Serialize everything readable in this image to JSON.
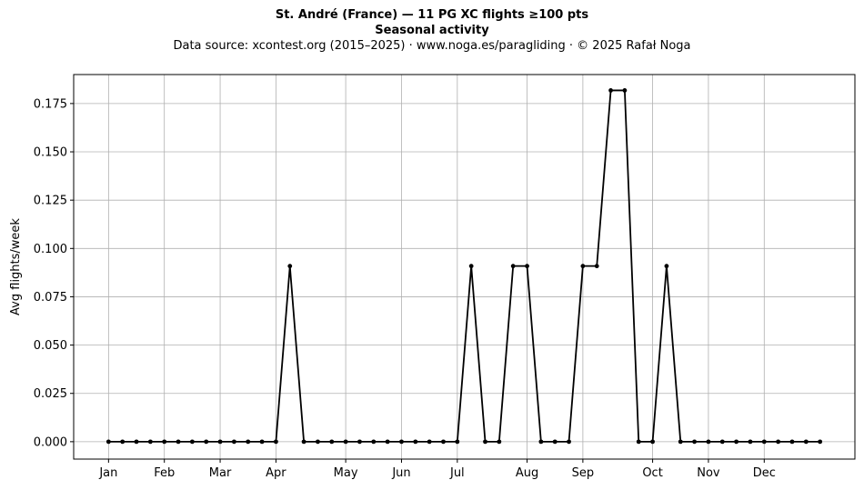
{
  "chart_data": {
    "type": "line",
    "title": "St. André (France)  —  11 PG XC flights ≥100 pts",
    "subtitle": "Seasonal activity",
    "source_line": "Data source: xcontest.org (2015–2025)  ·  www.noga.es/paragliding  ·  © 2025 Rafał Noga",
    "xlabel": "",
    "ylabel": "Avg flights/week",
    "ylim": [
      -0.009,
      0.19
    ],
    "xlim": [
      -2.5,
      53.5
    ],
    "grid": true,
    "x_tick_labels": [
      {
        "label": "Jan",
        "x": 0
      },
      {
        "label": "Feb",
        "x": 4
      },
      {
        "label": "Mar",
        "x": 8
      },
      {
        "label": "Apr",
        "x": 12
      },
      {
        "label": "May",
        "x": 17
      },
      {
        "label": "Jun",
        "x": 21
      },
      {
        "label": "Jul",
        "x": 25
      },
      {
        "label": "Aug",
        "x": 30
      },
      {
        "label": "Sep",
        "x": 34
      },
      {
        "label": "Oct",
        "x": 39
      },
      {
        "label": "Nov",
        "x": 43
      },
      {
        "label": "Dec",
        "x": 47
      }
    ],
    "y_ticks": [
      0.0,
      0.025,
      0.05,
      0.075,
      0.1,
      0.125,
      0.15,
      0.175
    ],
    "y_tick_labels": [
      "0.000",
      "0.025",
      "0.050",
      "0.075",
      "0.100",
      "0.125",
      "0.150",
      "0.175"
    ],
    "series": [
      {
        "color": "#000000",
        "x": [
          0,
          1,
          2,
          3,
          4,
          5,
          6,
          7,
          8,
          9,
          10,
          11,
          12,
          13,
          14,
          15,
          16,
          17,
          18,
          19,
          20,
          21,
          22,
          23,
          24,
          25,
          26,
          27,
          28,
          29,
          30,
          31,
          32,
          33,
          34,
          35,
          36,
          37,
          38,
          39,
          40,
          41,
          42,
          43,
          44,
          45,
          46,
          47,
          48,
          49,
          50,
          51
        ],
        "values": [
          0,
          0,
          0,
          0,
          0,
          0,
          0,
          0,
          0,
          0,
          0,
          0,
          0,
          0.0909,
          0,
          0,
          0,
          0,
          0,
          0,
          0,
          0,
          0,
          0,
          0,
          0,
          0.0909,
          0,
          0,
          0.0909,
          0.0909,
          0,
          0,
          0,
          0.0909,
          0.0909,
          0.1818,
          0.1818,
          0,
          0,
          0.0909,
          0,
          0,
          0,
          0,
          0,
          0,
          0,
          0,
          0,
          0,
          0
        ]
      }
    ]
  }
}
